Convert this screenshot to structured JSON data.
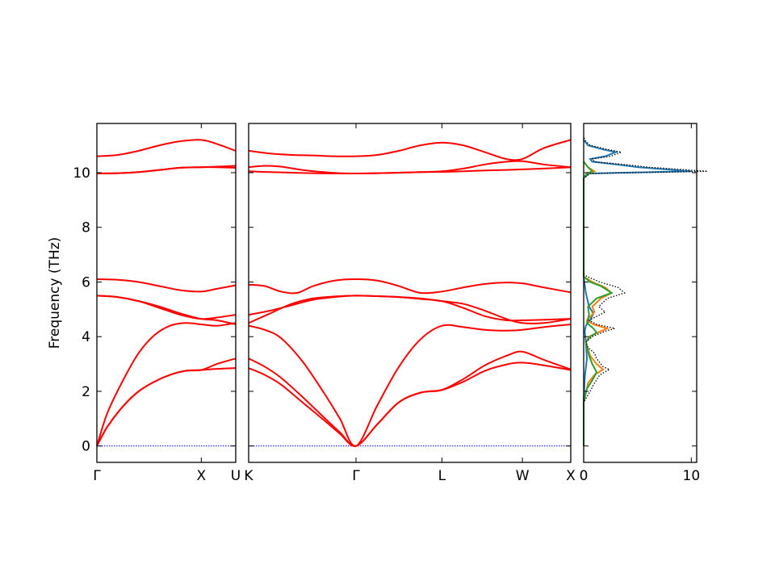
{
  "chart_data": {
    "type": "line",
    "ylabel": "Frequency (THz)",
    "ylim": [
      -0.6,
      11.8
    ],
    "y_ticks": [
      "0",
      "2",
      "4",
      "6",
      "8",
      "10"
    ],
    "colors": {
      "band": "#ff0000",
      "zero_line": "#0000cc",
      "dos_total": "#000000",
      "dos_blue": "#1f77b4",
      "dos_orange": "#ff7f0e",
      "dos_green": "#2ca02c"
    },
    "band_panels": [
      {
        "id": "gamma-x-u",
        "xlim": [
          0,
          1.33
        ],
        "x_ticks": [
          {
            "pos": 0,
            "label": "Γ"
          },
          {
            "pos": 1.0,
            "label": "X"
          },
          {
            "pos": 1.33,
            "label": "U"
          }
        ],
        "bands": [
          {
            "x": [
              0,
              0.1,
              0.25,
              0.4,
              0.55,
              0.7,
              0.85,
              1.0,
              1.15,
              1.33
            ],
            "y": [
              0,
              0.7,
              1.45,
              2.0,
              2.35,
              2.6,
              2.75,
              2.78,
              2.82,
              2.85
            ]
          },
          {
            "x": [
              0,
              0.1,
              0.25,
              0.4,
              0.55,
              0.7,
              0.85,
              1.0,
              1.15,
              1.33
            ],
            "y": [
              0,
              0.7,
              1.45,
              2.0,
              2.35,
              2.6,
              2.75,
              2.78,
              3.0,
              3.2
            ]
          },
          {
            "x": [
              0,
              0.1,
              0.25,
              0.4,
              0.55,
              0.7,
              0.85,
              1.0,
              1.15,
              1.33
            ],
            "y": [
              0,
              1.2,
              2.4,
              3.4,
              4.05,
              4.4,
              4.5,
              4.45,
              4.4,
              4.5
            ]
          },
          {
            "x": [
              0,
              0.2,
              0.4,
              0.6,
              0.8,
              1.0,
              1.15,
              1.33
            ],
            "y": [
              5.5,
              5.45,
              5.3,
              5.1,
              4.85,
              4.65,
              4.6,
              4.45
            ]
          },
          {
            "x": [
              0,
              0.2,
              0.4,
              0.6,
              0.8,
              1.0,
              1.15,
              1.33
            ],
            "y": [
              5.5,
              5.45,
              5.3,
              5.05,
              4.8,
              4.65,
              4.7,
              4.8
            ]
          },
          {
            "x": [
              0,
              0.2,
              0.4,
              0.6,
              0.8,
              1.0,
              1.15,
              1.33
            ],
            "y": [
              6.1,
              6.08,
              6.0,
              5.85,
              5.7,
              5.65,
              5.75,
              5.88
            ]
          },
          {
            "x": [
              0,
              0.2,
              0.4,
              0.6,
              0.8,
              1.0,
              1.15,
              1.33
            ],
            "y": [
              9.97,
              9.98,
              10.02,
              10.1,
              10.18,
              10.2,
              10.2,
              10.18
            ]
          },
          {
            "x": [
              0,
              0.2,
              0.4,
              0.6,
              0.8,
              1.0,
              1.15,
              1.33
            ],
            "y": [
              9.97,
              9.98,
              10.02,
              10.1,
              10.18,
              10.2,
              10.22,
              10.25
            ]
          },
          {
            "x": [
              0,
              0.2,
              0.4,
              0.6,
              0.8,
              1.0,
              1.15,
              1.33
            ],
            "y": [
              10.6,
              10.65,
              10.8,
              11.0,
              11.15,
              11.2,
              11.05,
              10.8
            ]
          }
        ],
        "zero_line": true
      },
      {
        "id": "k-gamma-l-w-x",
        "xlim": [
          0,
          3.0
        ],
        "x_ticks": [
          {
            "pos": 0,
            "label": "K"
          },
          {
            "pos": 1.0,
            "label": "Γ"
          },
          {
            "pos": 1.8,
            "label": "L"
          },
          {
            "pos": 2.55,
            "label": "W"
          },
          {
            "pos": 3.0,
            "label": "X"
          }
        ],
        "bands": [
          {
            "x": [
              0,
              0.15,
              0.3,
              0.5,
              0.7,
              0.85,
              1.0,
              1.2,
              1.4,
              1.6,
              1.8,
              2.0,
              2.2,
              2.4,
              2.55,
              2.75,
              3.0
            ],
            "y": [
              2.85,
              2.6,
              2.25,
              1.6,
              0.95,
              0.45,
              0,
              0.8,
              1.6,
              1.95,
              2.05,
              2.35,
              2.75,
              2.98,
              3.05,
              2.95,
              2.78
            ]
          },
          {
            "x": [
              0,
              0.15,
              0.3,
              0.5,
              0.7,
              0.85,
              1.0,
              1.2,
              1.4,
              1.6,
              1.8,
              2.0,
              2.2,
              2.4,
              2.55,
              2.75,
              3.0
            ],
            "y": [
              3.2,
              2.9,
              2.5,
              1.8,
              1.05,
              0.5,
              0,
              0.8,
              1.6,
              1.95,
              2.05,
              2.45,
              2.95,
              3.3,
              3.45,
              3.15,
              2.8
            ]
          },
          {
            "x": [
              0,
              0.15,
              0.3,
              0.5,
              0.7,
              0.85,
              1.0,
              1.2,
              1.4,
              1.6,
              1.8,
              2.0,
              2.2,
              2.4,
              2.55,
              2.75,
              3.0
            ],
            "y": [
              4.4,
              4.25,
              3.95,
              3.1,
              1.95,
              1.0,
              0,
              1.5,
              2.9,
              3.9,
              4.4,
              4.35,
              4.25,
              4.22,
              4.25,
              4.35,
              4.45
            ]
          },
          {
            "x": [
              0,
              0.2,
              0.4,
              0.6,
              0.8,
              1.0,
              1.2,
              1.4,
              1.6,
              1.8,
              2.0,
              2.2,
              2.4,
              2.55,
              2.75,
              3.0
            ],
            "y": [
              4.5,
              4.85,
              5.2,
              5.4,
              5.47,
              5.5,
              5.48,
              5.45,
              5.38,
              5.3,
              5.05,
              4.75,
              4.6,
              4.6,
              4.62,
              4.65
            ]
          },
          {
            "x": [
              0,
              0.2,
              0.4,
              0.6,
              0.8,
              1.0,
              1.2,
              1.4,
              1.6,
              1.8,
              2.0,
              2.2,
              2.4,
              2.55,
              2.75,
              3.0
            ],
            "y": [
              4.8,
              4.95,
              5.15,
              5.35,
              5.45,
              5.5,
              5.48,
              5.45,
              5.4,
              5.3,
              5.2,
              4.95,
              4.65,
              4.5,
              4.5,
              4.65
            ]
          },
          {
            "x": [
              0,
              0.15,
              0.3,
              0.45,
              0.6,
              0.8,
              1.0,
              1.2,
              1.4,
              1.6,
              1.8,
              2.0,
              2.2,
              2.4,
              2.55,
              2.75,
              3.0
            ],
            "y": [
              5.9,
              5.85,
              5.65,
              5.6,
              5.85,
              6.05,
              6.1,
              6.05,
              5.85,
              5.6,
              5.65,
              5.8,
              5.93,
              5.98,
              5.95,
              5.8,
              5.62
            ]
          },
          {
            "x": [
              0,
              0.2,
              0.4,
              0.6,
              0.8,
              1.0,
              1.2,
              1.4,
              1.6,
              1.8,
              2.0,
              2.2,
              2.4,
              2.55,
              2.75,
              3.0
            ],
            "y": [
              10.05,
              10.02,
              10.0,
              9.98,
              9.97,
              9.97,
              9.98,
              10.0,
              10.02,
              10.03,
              10.05,
              10.08,
              10.1,
              10.12,
              10.15,
              10.2
            ]
          },
          {
            "x": [
              0,
              0.15,
              0.3,
              0.5,
              0.7,
              0.85,
              1.0,
              1.2,
              1.4,
              1.6,
              1.8,
              2.0,
              2.2,
              2.4,
              2.55,
              2.75,
              3.0
            ],
            "y": [
              10.2,
              10.25,
              10.22,
              10.1,
              10.02,
              9.98,
              9.97,
              9.98,
              10.0,
              10.02,
              10.05,
              10.15,
              10.3,
              10.4,
              10.42,
              10.3,
              10.2
            ]
          },
          {
            "x": [
              0,
              0.2,
              0.4,
              0.6,
              0.8,
              1.0,
              1.2,
              1.4,
              1.6,
              1.8,
              2.0,
              2.2,
              2.4,
              2.55,
              2.75,
              3.0
            ],
            "y": [
              10.8,
              10.7,
              10.65,
              10.63,
              10.6,
              10.6,
              10.65,
              10.8,
              11.0,
              11.1,
              11.0,
              10.75,
              10.5,
              10.5,
              10.9,
              11.2
            ]
          }
        ],
        "zero_line": true
      }
    ],
    "dos_panel": {
      "xlim": [
        0,
        10.5
      ],
      "x_ticks": [
        {
          "pos": 0,
          "label": "0"
        },
        {
          "pos": 10,
          "label": "10"
        }
      ],
      "series": [
        {
          "name": "",
          "color_key": "dos_total",
          "style": "dotted",
          "points": [
            [
              0,
              0
            ],
            [
              0,
              1.6
            ],
            [
              0.3,
              1.8
            ],
            [
              0.6,
              2.0
            ],
            [
              1.0,
              2.3
            ],
            [
              1.5,
              2.6
            ],
            [
              2.4,
              2.8
            ],
            [
              1.8,
              2.9
            ],
            [
              1.2,
              3.2
            ],
            [
              1.0,
              3.4
            ],
            [
              0.4,
              3.6
            ],
            [
              0.2,
              3.8
            ],
            [
              0.8,
              4.0
            ],
            [
              2.0,
              4.2
            ],
            [
              2.9,
              4.3
            ],
            [
              1.2,
              4.45
            ],
            [
              0.5,
              4.6
            ],
            [
              2.0,
              4.9
            ],
            [
              1.4,
              5.1
            ],
            [
              2.2,
              5.4
            ],
            [
              3.8,
              5.6
            ],
            [
              3.2,
              5.8
            ],
            [
              1.5,
              6.0
            ],
            [
              0.3,
              6.2
            ],
            [
              0,
              6.3
            ],
            [
              0,
              9.8
            ],
            [
              0.6,
              9.97
            ],
            [
              11.5,
              10.05
            ],
            [
              6.0,
              10.2
            ],
            [
              4.2,
              10.28
            ],
            [
              1.0,
              10.4
            ],
            [
              0.8,
              10.5
            ],
            [
              2.5,
              10.6
            ],
            [
              3.5,
              10.75
            ],
            [
              2.2,
              10.85
            ],
            [
              0.6,
              11.0
            ],
            [
              0.2,
              11.15
            ],
            [
              0,
              11.3
            ]
          ]
        },
        {
          "name": "",
          "color_key": "dos_blue",
          "style": "solid",
          "points": [
            [
              0,
              0
            ],
            [
              0,
              1.6
            ],
            [
              0.1,
              2.5
            ],
            [
              0.3,
              3.2
            ],
            [
              0.2,
              3.8
            ],
            [
              0.1,
              4.2
            ],
            [
              0.2,
              4.4
            ],
            [
              0.6,
              4.6
            ],
            [
              0.9,
              4.85
            ],
            [
              0.5,
              5.1
            ],
            [
              0.2,
              5.6
            ],
            [
              0,
              6.2
            ],
            [
              0,
              9.8
            ],
            [
              0.5,
              9.97
            ],
            [
              10.0,
              10.05
            ],
            [
              5.0,
              10.2
            ],
            [
              3.5,
              10.28
            ],
            [
              0.8,
              10.4
            ],
            [
              0.6,
              10.5
            ],
            [
              2.0,
              10.6
            ],
            [
              3.0,
              10.75
            ],
            [
              1.8,
              10.85
            ],
            [
              0.4,
              11.0
            ],
            [
              0,
              11.2
            ]
          ]
        },
        {
          "name": "",
          "color_key": "dos_orange",
          "style": "solid",
          "points": [
            [
              0,
              0
            ],
            [
              0,
              1.6
            ],
            [
              0.4,
              2.3
            ],
            [
              1.0,
              2.6
            ],
            [
              1.8,
              2.8
            ],
            [
              1.2,
              3.0
            ],
            [
              0.6,
              3.3
            ],
            [
              0.2,
              3.8
            ],
            [
              0.5,
              4.0
            ],
            [
              1.6,
              4.2
            ],
            [
              2.2,
              4.3
            ],
            [
              0.9,
              4.45
            ],
            [
              0.3,
              4.6
            ],
            [
              1.0,
              4.9
            ],
            [
              0.8,
              5.1
            ],
            [
              1.6,
              5.4
            ],
            [
              2.6,
              5.6
            ],
            [
              2.0,
              5.8
            ],
            [
              0.8,
              6.0
            ],
            [
              0,
              6.2
            ],
            [
              0,
              9.8
            ],
            [
              0.3,
              9.97
            ],
            [
              1.0,
              10.05
            ],
            [
              0.4,
              10.2
            ],
            [
              0,
              10.4
            ]
          ]
        },
        {
          "name": "",
          "color_key": "dos_green",
          "style": "solid",
          "points": [
            [
              0,
              0
            ],
            [
              0,
              1.6
            ],
            [
              0.3,
              2.1
            ],
            [
              0.8,
              2.4
            ],
            [
              1.2,
              2.7
            ],
            [
              0.8,
              3.0
            ],
            [
              0.5,
              3.3
            ],
            [
              0.2,
              3.8
            ],
            [
              0.6,
              4.0
            ],
            [
              1.2,
              4.15
            ],
            [
              0.9,
              4.3
            ],
            [
              0.3,
              4.5
            ],
            [
              0.5,
              4.8
            ],
            [
              0.4,
              5.1
            ],
            [
              1.2,
              5.4
            ],
            [
              2.6,
              5.6
            ],
            [
              1.6,
              5.85
            ],
            [
              0.6,
              6.0
            ],
            [
              0,
              6.2
            ],
            [
              0,
              9.8
            ],
            [
              0.3,
              9.97
            ],
            [
              0.8,
              10.05
            ],
            [
              0.4,
              10.2
            ],
            [
              0,
              10.4
            ]
          ]
        }
      ]
    }
  }
}
